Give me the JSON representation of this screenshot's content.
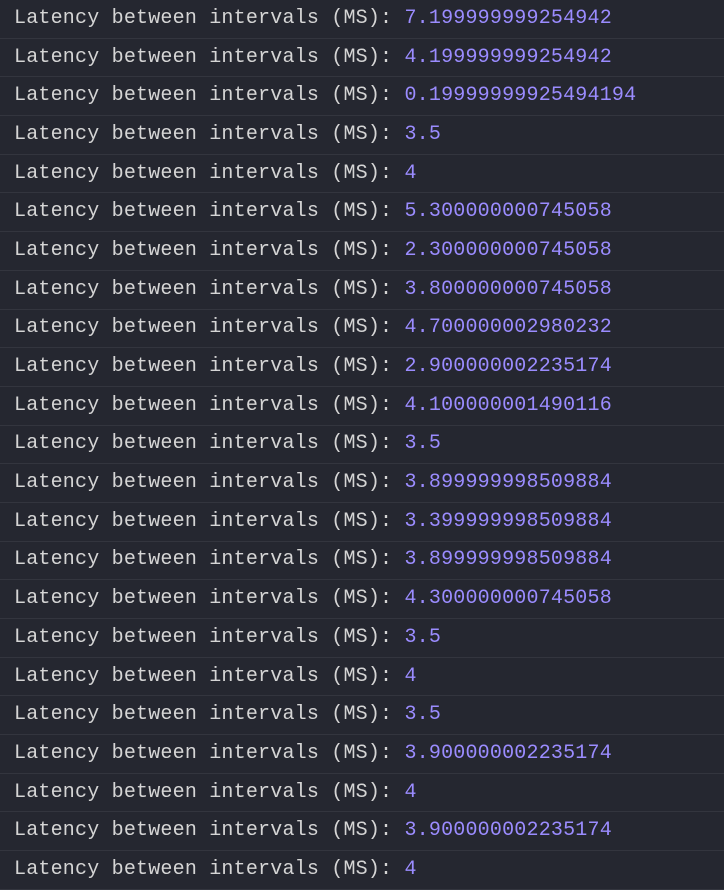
{
  "console": {
    "label_text": "Latency between intervals (MS): ",
    "label_color": "#d5d5d5",
    "value_color": "#9b8cff",
    "background_color": "#252730",
    "row_border_color": "#33353e",
    "font_family": "Menlo, Monaco, Courier New, monospace",
    "font_size": 20,
    "rows": [
      {
        "value": "7.199999999254942"
      },
      {
        "value": "4.199999999254942"
      },
      {
        "value": "0.19999999925494194"
      },
      {
        "value": "3.5"
      },
      {
        "value": "4"
      },
      {
        "value": "5.300000000745058"
      },
      {
        "value": "2.300000000745058"
      },
      {
        "value": "3.800000000745058"
      },
      {
        "value": "4.700000002980232"
      },
      {
        "value": "2.900000002235174"
      },
      {
        "value": "4.100000001490116"
      },
      {
        "value": "3.5"
      },
      {
        "value": "3.899999998509884"
      },
      {
        "value": "3.399999998509884"
      },
      {
        "value": "3.899999998509884"
      },
      {
        "value": "4.300000000745058"
      },
      {
        "value": "3.5"
      },
      {
        "value": "4"
      },
      {
        "value": "3.5"
      },
      {
        "value": "3.900000002235174"
      },
      {
        "value": "4"
      },
      {
        "value": "3.900000002235174"
      },
      {
        "value": "4"
      }
    ]
  }
}
